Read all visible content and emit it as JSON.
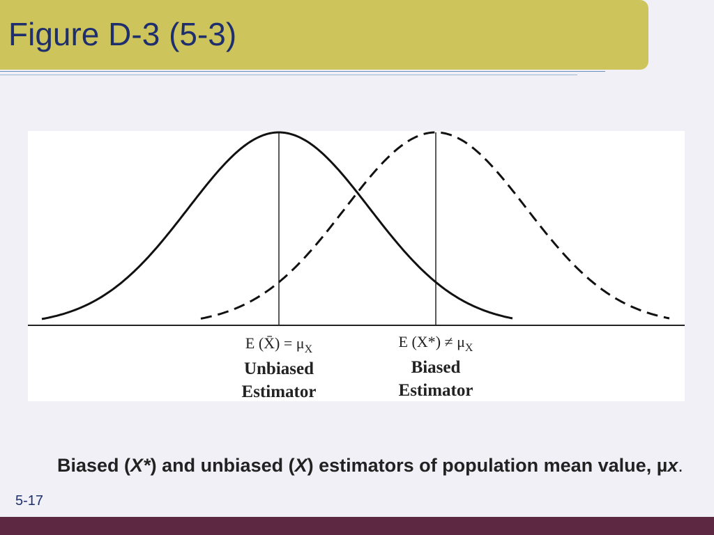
{
  "header": {
    "title": "Figure D-3 (5-3)"
  },
  "figure": {
    "unbiased": {
      "equation": [
        "E (",
        "X̄",
        ") = μ",
        "X"
      ],
      "name": [
        "Unbiased",
        "Estimator"
      ]
    },
    "biased": {
      "equation": [
        "E (",
        "X*",
        ") ≠ μ",
        "X"
      ],
      "name": [
        "Biased",
        "Estimator"
      ]
    }
  },
  "caption": [
    "Biased (",
    "X*",
    ") and unbiased (",
    "X",
    ") estimators of population mean value, µ",
    "x",
    "."
  ],
  "footer": {
    "slide_number": "5-17"
  }
}
